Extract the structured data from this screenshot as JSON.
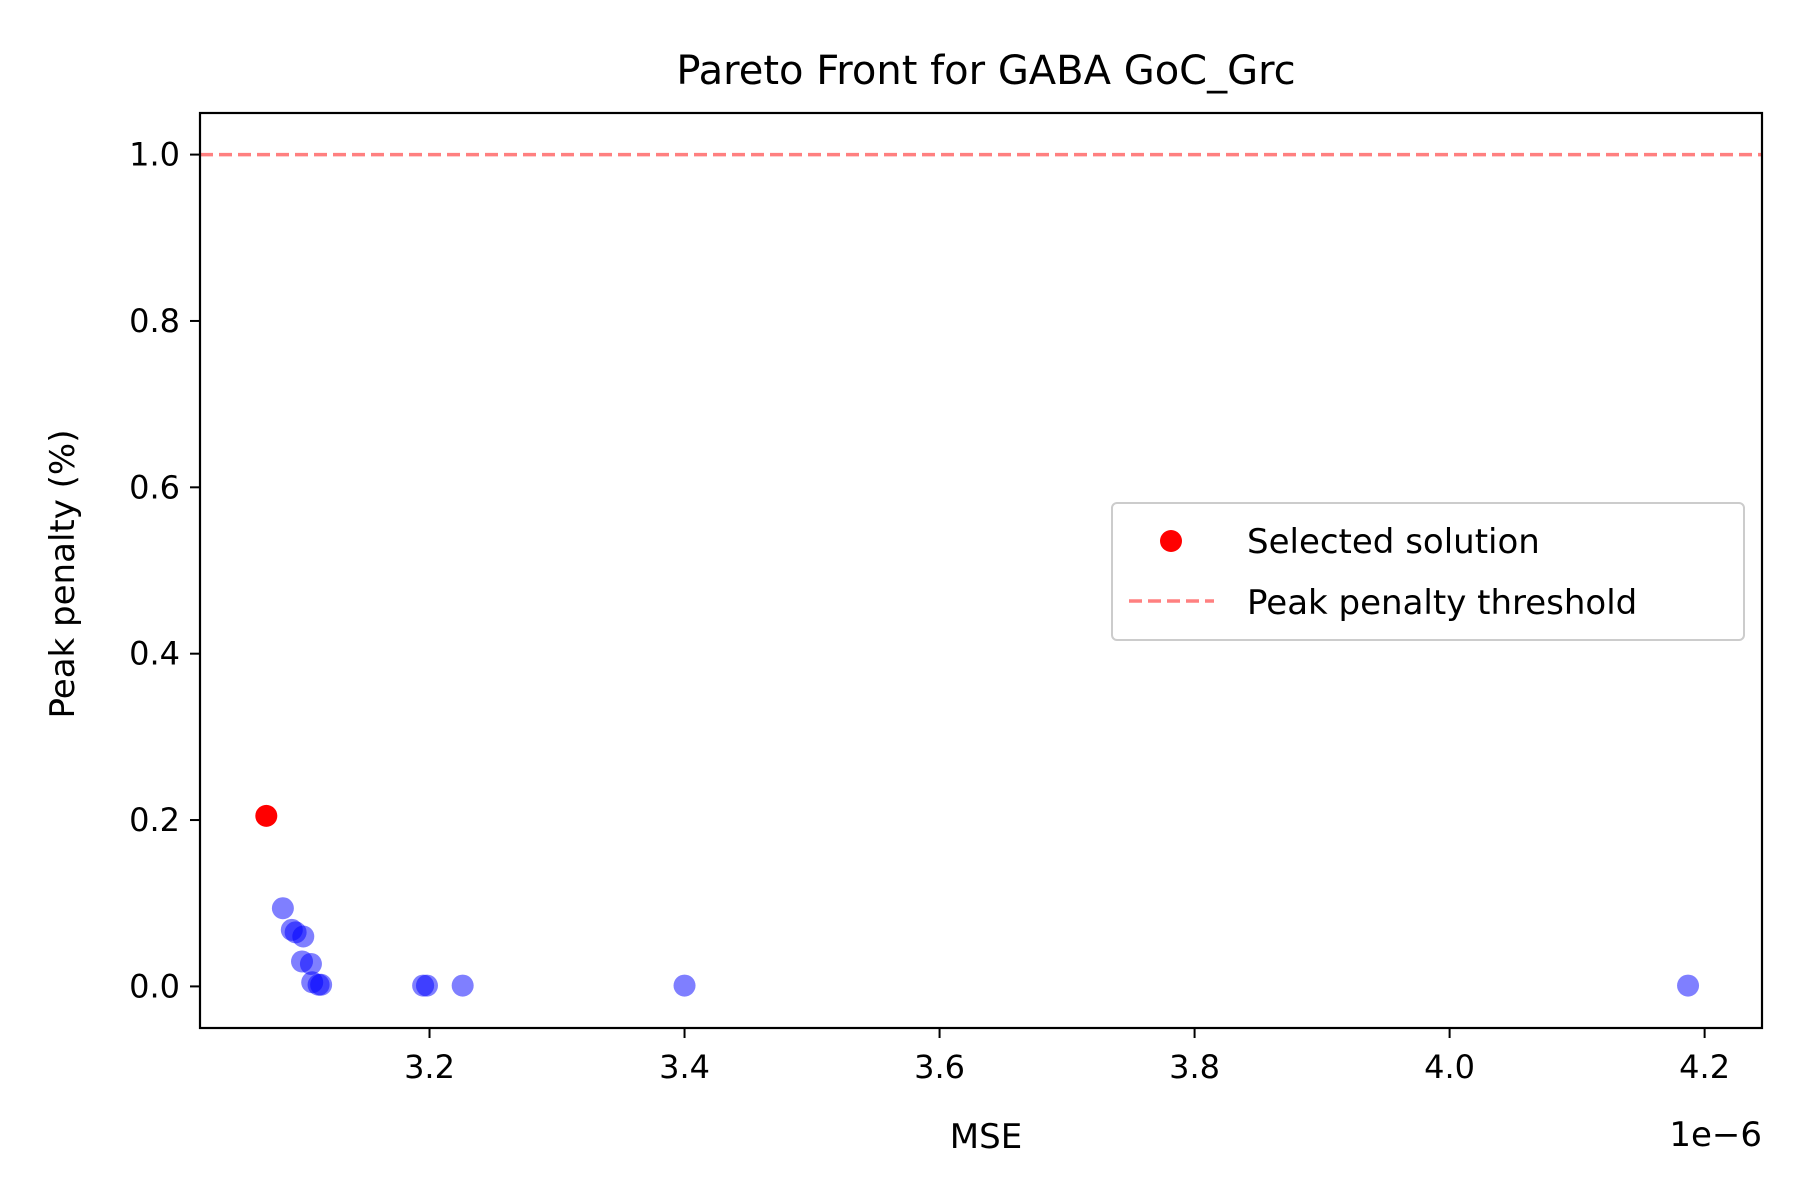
{
  "chart_data": {
    "type": "scatter",
    "title": "Pareto Front for GABA GoC_Grc",
    "xlabel": "MSE",
    "ylabel": "Peak penalty (%)",
    "x_offset_label": "1e−6",
    "xlim": [
      3.02,
      4.245
    ],
    "ylim": [
      -0.05,
      1.05
    ],
    "xticks": [
      3.2,
      3.4,
      3.6,
      3.8,
      4.0,
      4.2
    ],
    "xtick_labels": [
      "3.2",
      "3.4",
      "3.6",
      "3.8",
      "4.0",
      "4.2"
    ],
    "yticks": [
      0.0,
      0.2,
      0.4,
      0.6,
      0.8,
      1.0
    ],
    "ytick_labels": [
      "0.0",
      "0.2",
      "0.4",
      "0.6",
      "0.8",
      "1.0"
    ],
    "grid": false,
    "legend_position": "center-right",
    "series": [
      {
        "label": "",
        "color": "#0000ff",
        "points": [
          {
            "x": 3.085,
            "y": 0.094
          },
          {
            "x": 3.092,
            "y": 0.068
          },
          {
            "x": 3.095,
            "y": 0.065
          },
          {
            "x": 3.101,
            "y": 0.06
          },
          {
            "x": 3.1,
            "y": 0.03
          },
          {
            "x": 3.107,
            "y": 0.027
          },
          {
            "x": 3.108,
            "y": 0.005
          },
          {
            "x": 3.113,
            "y": 0.002
          },
          {
            "x": 3.115,
            "y": 0.002
          },
          {
            "x": 3.195,
            "y": 0.001
          },
          {
            "x": 3.198,
            "y": 0.001
          },
          {
            "x": 3.226,
            "y": 0.001
          },
          {
            "x": 3.4,
            "y": 0.001
          },
          {
            "x": 4.187,
            "y": 0.001
          }
        ]
      },
      {
        "label": "Selected solution",
        "color": "#ff0000",
        "points": [
          {
            "x": 3.072,
            "y": 0.205
          }
        ]
      }
    ],
    "hline": {
      "y": 1.0,
      "label": "Peak penalty threshold",
      "color": "#ff8080",
      "style": "dashed"
    },
    "legend": [
      {
        "label": "Selected solution",
        "marker": "circle",
        "color": "#ff0000"
      },
      {
        "label": "Peak penalty threshold",
        "marker": "dashed-line",
        "color": "#ff8080"
      }
    ]
  }
}
